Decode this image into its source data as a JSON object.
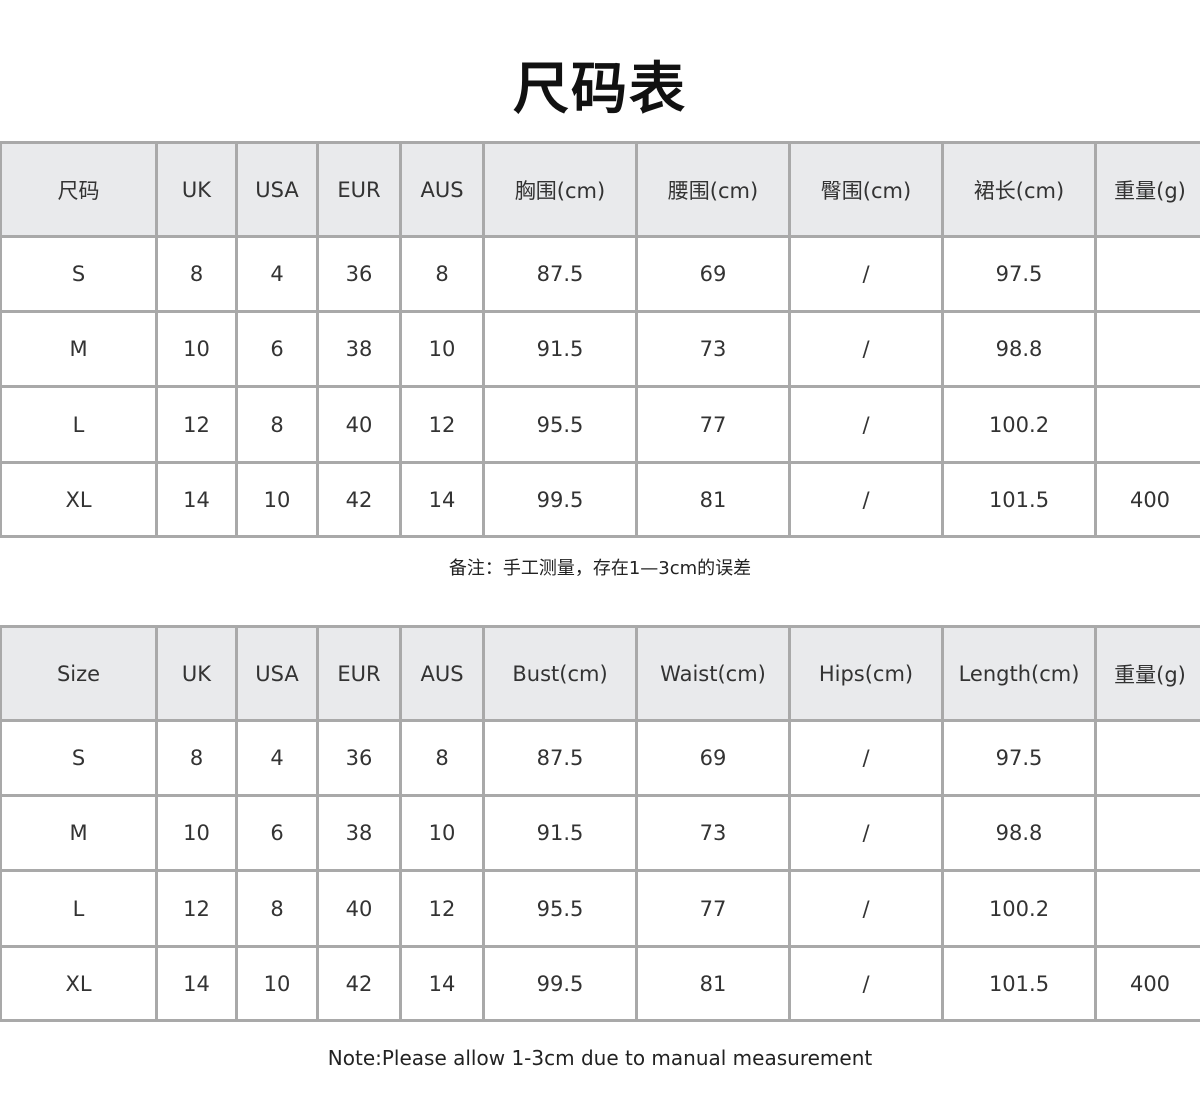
{
  "title": "尺码表",
  "tables": [
    {
      "headers": [
        "尺码",
        "UK",
        "USA",
        "EUR",
        "AUS",
        "胸围(cm)",
        "腰围(cm)",
        "臀围(cm)",
        "裙长(cm)",
        "重量(g)"
      ],
      "rows": [
        [
          "S",
          "8",
          "4",
          "36",
          "8",
          "87.5",
          "69",
          "/",
          "97.5",
          ""
        ],
        [
          "M",
          "10",
          "6",
          "38",
          "10",
          "91.5",
          "73",
          "/",
          "98.8",
          ""
        ],
        [
          "L",
          "12",
          "8",
          "40",
          "12",
          "95.5",
          "77",
          "/",
          "100.2",
          ""
        ],
        [
          "XL",
          "14",
          "10",
          "42",
          "14",
          "99.5",
          "81",
          "/",
          "101.5",
          "400"
        ]
      ],
      "note": "备注：手工测量，存在1—3cm的误差"
    },
    {
      "headers": [
        "Size",
        "UK",
        "USA",
        "EUR",
        "AUS",
        "Bust(cm)",
        "Waist(cm)",
        "Hips(cm)",
        "Length(cm)",
        "重量(g)"
      ],
      "rows": [
        [
          "S",
          "8",
          "4",
          "36",
          "8",
          "87.5",
          "69",
          "/",
          "97.5",
          ""
        ],
        [
          "M",
          "10",
          "6",
          "38",
          "10",
          "91.5",
          "73",
          "/",
          "98.8",
          ""
        ],
        [
          "L",
          "12",
          "8",
          "40",
          "12",
          "95.5",
          "77",
          "/",
          "100.2",
          ""
        ],
        [
          "XL",
          "14",
          "10",
          "42",
          "14",
          "99.5",
          "81",
          "/",
          "101.5",
          "400"
        ]
      ],
      "note": "Note:Please allow 1-3cm due to manual measurement"
    }
  ]
}
